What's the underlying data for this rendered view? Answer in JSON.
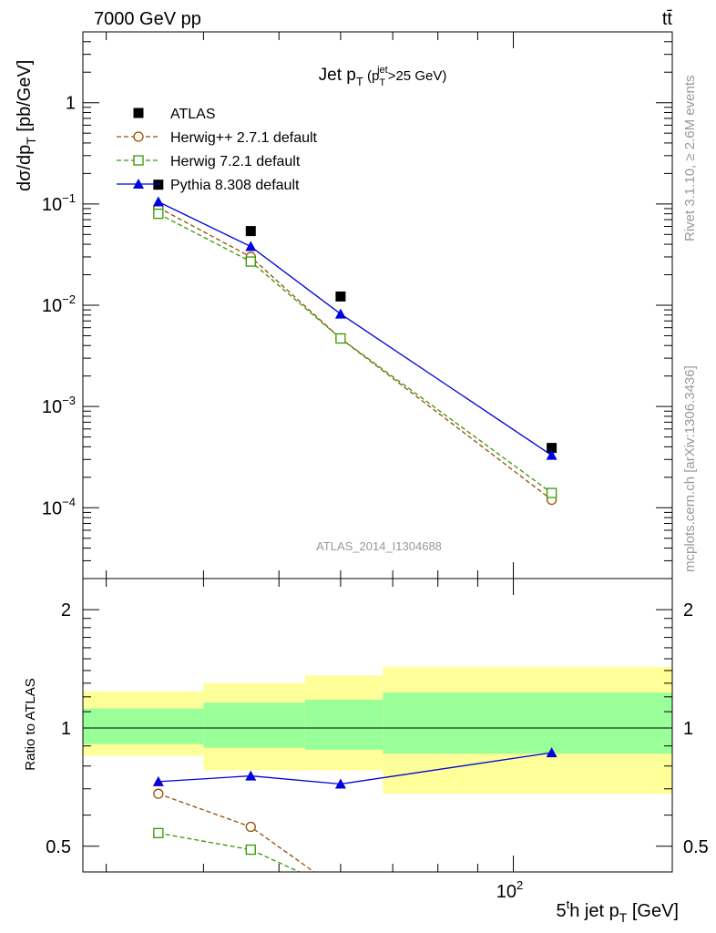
{
  "header": {
    "left": "7000 GeV pp",
    "right": "tt̄"
  },
  "side_labels": {
    "rivet": "Rivet 3.1.10, ≥ 2.6M events",
    "mcplots": "mcplots.cern.ch [arXiv:1306.3436]"
  },
  "analysis_tag": "ATLAS_2014_I1304688",
  "chart_data": [
    {
      "type": "scatter",
      "panel": "main",
      "title": {
        "main": "Jet p",
        "sub": "T",
        "paren_open": " (p",
        "paren_sub": "T",
        "paren_sup": "jet",
        "paren_close": ">25 GeV)"
      },
      "ylabel": {
        "main": "dσ/dp",
        "sub": "T",
        "tail": " [pb/GeV]"
      },
      "y_scale": "log",
      "x_scale": "log",
      "xlim": [
        28,
        160
      ],
      "ylim": [
        2e-05,
        5
      ],
      "y_ticks": [
        {
          "value": 1,
          "base": "1",
          "exp": ""
        },
        {
          "value": 0.1,
          "base": "10",
          "exp": "−1"
        },
        {
          "value": 0.01,
          "base": "10",
          "exp": "−2"
        },
        {
          "value": 0.001,
          "base": "10",
          "exp": "−3"
        },
        {
          "value": 0.0001,
          "base": "10",
          "exp": "−4"
        }
      ],
      "series": [
        {
          "name": "ATLAS",
          "color": "#000000",
          "marker": "filled-square",
          "line": "none",
          "x": [
            35,
            46,
            60,
            112
          ],
          "y": [
            0.155,
            0.054,
            0.0122,
            0.00039
          ]
        },
        {
          "name": "Herwig++ 2.7.1 default",
          "color": "#994c00",
          "marker": "open-circle",
          "line": "dashed",
          "x": [
            35,
            46,
            60,
            112
          ],
          "y": [
            0.092,
            0.03,
            0.0047,
            0.00012
          ]
        },
        {
          "name": "Herwig 7.2.1 default",
          "color": "#339900",
          "marker": "open-square",
          "line": "dashed",
          "x": [
            35,
            46,
            60,
            112
          ],
          "y": [
            0.08,
            0.027,
            0.0047,
            0.00014
          ]
        },
        {
          "name": "Pythia 8.308 default",
          "color": "#0000dd",
          "marker": "filled-triangle",
          "line": "solid",
          "x": [
            35,
            46,
            60,
            112
          ],
          "y": [
            0.105,
            0.038,
            0.0082,
            0.00033
          ]
        }
      ],
      "legend_position": "top-left"
    },
    {
      "type": "line",
      "panel": "ratio",
      "ylabel": "Ratio to ATLAS",
      "xlabel": {
        "pre": "5",
        "sup": "t",
        "mid": "h jet p",
        "sub": "T",
        "tail": " [GeV]"
      },
      "x_scale": "log",
      "y_scale": "log",
      "xlim": [
        28,
        160
      ],
      "ylim": [
        0.43,
        2.4
      ],
      "y_ticks": [
        {
          "value": 0.5,
          "label": "0.5"
        },
        {
          "value": 1,
          "label": "1"
        },
        {
          "value": 2,
          "label": "2"
        }
      ],
      "x_ticks": [
        {
          "value": 100,
          "base": "10",
          "exp": "2"
        }
      ],
      "reference": 1,
      "bands": [
        {
          "x0": 28,
          "x1": 40,
          "yellow": [
            0.85,
            1.24
          ],
          "green": [
            0.91,
            1.12
          ]
        },
        {
          "x0": 40,
          "x1": 54,
          "yellow": [
            0.78,
            1.3
          ],
          "green": [
            0.89,
            1.16
          ]
        },
        {
          "x0": 54,
          "x1": 68,
          "yellow": [
            0.78,
            1.36
          ],
          "green": [
            0.88,
            1.18
          ]
        },
        {
          "x0": 68,
          "x1": 160,
          "yellow": [
            0.68,
            1.43
          ],
          "green": [
            0.86,
            1.23
          ]
        }
      ],
      "series": [
        {
          "name": "Herwig++ 2.7.1 default",
          "color": "#994c00",
          "marker": "open-circle",
          "line": "dashed",
          "x": [
            35,
            46,
            60
          ],
          "y": [
            0.68,
            0.56,
            0.385
          ]
        },
        {
          "name": "Herwig 7.2.1 default",
          "color": "#339900",
          "marker": "open-square",
          "line": "dashed",
          "x": [
            35,
            46,
            60
          ],
          "y": [
            0.54,
            0.49,
            0.385
          ]
        },
        {
          "name": "Pythia 8.308 default",
          "color": "#0000dd",
          "marker": "filled-triangle",
          "line": "solid",
          "x": [
            35,
            46,
            60,
            112
          ],
          "y": [
            0.73,
            0.755,
            0.72,
            0.865
          ]
        }
      ]
    }
  ],
  "colors": {
    "band_yellow": "#ffff99",
    "band_green": "#99ff99",
    "axis": "#000000",
    "watermark": "#999999"
  }
}
